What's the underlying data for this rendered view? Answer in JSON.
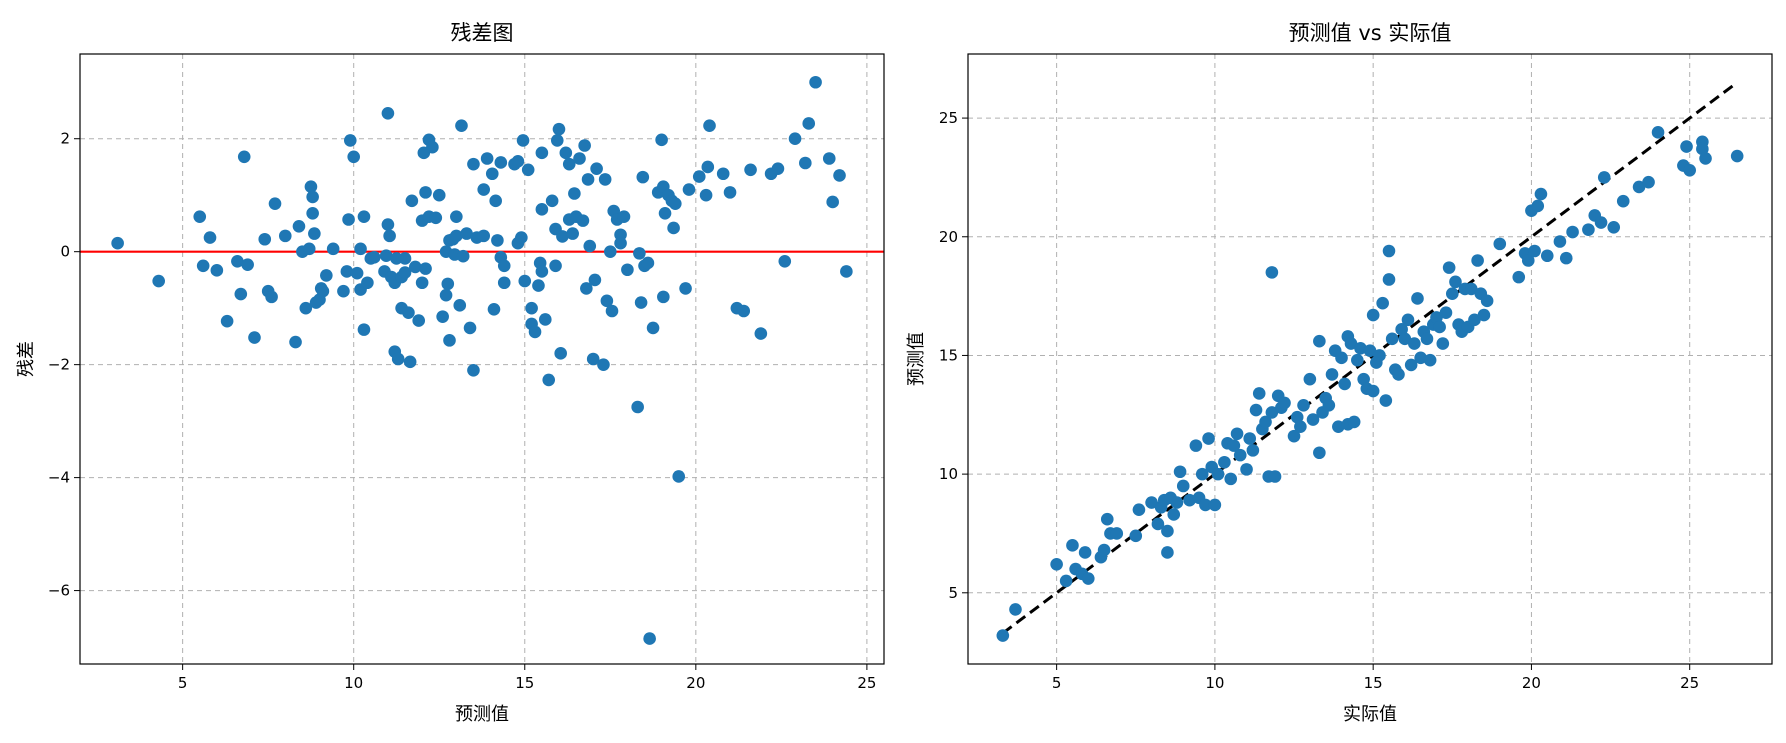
{
  "chart_data": [
    {
      "type": "scatter",
      "title": "残差图",
      "xlabel": "预测值",
      "ylabel": "残差",
      "xlim": [
        2.0,
        25.5
      ],
      "ylim": [
        -7.3,
        3.5
      ],
      "xticks": [
        5,
        10,
        15,
        20,
        25
      ],
      "yticks": [
        -6,
        -4,
        -2,
        0,
        2
      ],
      "grid": true,
      "point_color": "#1f77b4",
      "reference_line": {
        "type": "horizontal",
        "y": 0,
        "color": "#ff0000"
      },
      "points": [
        [
          3.1,
          0.15
        ],
        [
          4.3,
          -0.52
        ],
        [
          5.5,
          0.62
        ],
        [
          5.6,
          -0.25
        ],
        [
          5.8,
          0.25
        ],
        [
          6.0,
          -0.33
        ],
        [
          6.3,
          -1.23
        ],
        [
          6.6,
          -0.17
        ],
        [
          6.7,
          -0.75
        ],
        [
          6.8,
          1.68
        ],
        [
          6.9,
          -0.23
        ],
        [
          7.1,
          -1.52
        ],
        [
          7.4,
          0.22
        ],
        [
          7.5,
          -0.7
        ],
        [
          7.6,
          -0.8
        ],
        [
          7.7,
          0.85
        ],
        [
          8.0,
          0.28
        ],
        [
          8.3,
          -1.6
        ],
        [
          8.4,
          0.45
        ],
        [
          8.5,
          0.0
        ],
        [
          8.6,
          -1.0
        ],
        [
          8.7,
          0.05
        ],
        [
          8.75,
          1.15
        ],
        [
          8.8,
          0.97
        ],
        [
          8.8,
          0.68
        ],
        [
          8.85,
          0.32
        ],
        [
          8.9,
          -0.9
        ],
        [
          9.0,
          -0.85
        ],
        [
          9.05,
          -0.65
        ],
        [
          9.1,
          -0.7
        ],
        [
          9.2,
          -0.42
        ],
        [
          9.4,
          0.05
        ],
        [
          9.7,
          -0.7
        ],
        [
          9.8,
          -0.35
        ],
        [
          9.85,
          0.57
        ],
        [
          9.9,
          1.97
        ],
        [
          10.0,
          1.68
        ],
        [
          10.1,
          -0.38
        ],
        [
          10.2,
          0.05
        ],
        [
          10.2,
          -0.67
        ],
        [
          10.3,
          -1.38
        ],
        [
          10.3,
          0.62
        ],
        [
          10.4,
          -0.55
        ],
        [
          10.5,
          -0.12
        ],
        [
          10.6,
          -0.1
        ],
        [
          10.9,
          -0.35
        ],
        [
          10.95,
          -0.07
        ],
        [
          11.0,
          2.45
        ],
        [
          11.0,
          0.48
        ],
        [
          11.05,
          0.28
        ],
        [
          11.1,
          -0.45
        ],
        [
          11.2,
          -0.55
        ],
        [
          11.2,
          -1.77
        ],
        [
          11.25,
          -0.12
        ],
        [
          11.3,
          -1.9
        ],
        [
          11.4,
          -1.0
        ],
        [
          11.4,
          -0.45
        ],
        [
          11.5,
          -0.37
        ],
        [
          11.5,
          -0.12
        ],
        [
          11.6,
          -1.08
        ],
        [
          11.65,
          -1.95
        ],
        [
          11.7,
          0.9
        ],
        [
          11.8,
          -0.27
        ],
        [
          11.9,
          -1.22
        ],
        [
          12.0,
          -0.55
        ],
        [
          12.0,
          0.55
        ],
        [
          12.05,
          1.75
        ],
        [
          12.1,
          1.05
        ],
        [
          12.1,
          -0.3
        ],
        [
          12.2,
          0.62
        ],
        [
          12.2,
          1.98
        ],
        [
          12.3,
          1.85
        ],
        [
          12.4,
          0.6
        ],
        [
          12.5,
          1.0
        ],
        [
          12.6,
          -1.15
        ],
        [
          12.7,
          -0.77
        ],
        [
          12.7,
          0.0
        ],
        [
          12.75,
          -0.57
        ],
        [
          12.8,
          0.2
        ],
        [
          12.8,
          -1.57
        ],
        [
          12.9,
          0.22
        ],
        [
          12.95,
          -0.05
        ],
        [
          13.0,
          0.28
        ],
        [
          13.0,
          0.62
        ],
        [
          13.1,
          -0.95
        ],
        [
          13.15,
          2.23
        ],
        [
          13.2,
          -0.08
        ],
        [
          13.3,
          0.32
        ],
        [
          13.4,
          -1.35
        ],
        [
          13.5,
          -2.1
        ],
        [
          13.5,
          1.55
        ],
        [
          13.6,
          0.25
        ],
        [
          13.8,
          1.1
        ],
        [
          13.8,
          0.28
        ],
        [
          13.9,
          1.65
        ],
        [
          14.05,
          1.38
        ],
        [
          14.1,
          -1.02
        ],
        [
          14.15,
          0.9
        ],
        [
          14.2,
          0.2
        ],
        [
          14.3,
          -0.1
        ],
        [
          14.3,
          1.58
        ],
        [
          14.4,
          -0.25
        ],
        [
          14.4,
          -0.55
        ],
        [
          14.7,
          1.55
        ],
        [
          14.8,
          0.15
        ],
        [
          14.8,
          1.6
        ],
        [
          14.9,
          0.25
        ],
        [
          14.95,
          1.97
        ],
        [
          15.0,
          -0.52
        ],
        [
          15.1,
          1.45
        ],
        [
          15.2,
          -1.28
        ],
        [
          15.2,
          -1.0
        ],
        [
          15.3,
          -1.42
        ],
        [
          15.4,
          -0.6
        ],
        [
          15.45,
          -0.2
        ],
        [
          15.5,
          0.75
        ],
        [
          15.5,
          -0.35
        ],
        [
          15.5,
          1.75
        ],
        [
          15.6,
          -1.2
        ],
        [
          15.7,
          -2.27
        ],
        [
          15.8,
          0.9
        ],
        [
          15.9,
          -0.25
        ],
        [
          15.9,
          0.4
        ],
        [
          15.95,
          1.97
        ],
        [
          16.0,
          2.17
        ],
        [
          16.05,
          -1.8
        ],
        [
          16.1,
          0.27
        ],
        [
          16.2,
          1.75
        ],
        [
          16.3,
          0.57
        ],
        [
          16.3,
          1.55
        ],
        [
          16.4,
          0.32
        ],
        [
          16.45,
          1.03
        ],
        [
          16.5,
          0.62
        ],
        [
          16.6,
          1.65
        ],
        [
          16.7,
          0.55
        ],
        [
          16.75,
          1.88
        ],
        [
          16.8,
          -0.65
        ],
        [
          16.85,
          1.28
        ],
        [
          16.9,
          0.1
        ],
        [
          17.0,
          -1.9
        ],
        [
          17.05,
          -0.5
        ],
        [
          17.1,
          1.47
        ],
        [
          17.3,
          -2.0
        ],
        [
          17.35,
          1.28
        ],
        [
          17.4,
          -0.87
        ],
        [
          17.5,
          0.0
        ],
        [
          17.55,
          -1.05
        ],
        [
          17.6,
          0.72
        ],
        [
          17.7,
          0.57
        ],
        [
          17.8,
          0.3
        ],
        [
          17.8,
          0.15
        ],
        [
          17.9,
          0.62
        ],
        [
          18.0,
          -0.32
        ],
        [
          18.3,
          -2.75
        ],
        [
          18.35,
          -0.03
        ],
        [
          18.4,
          -0.9
        ],
        [
          18.45,
          1.32
        ],
        [
          18.5,
          -0.25
        ],
        [
          18.6,
          -0.2
        ],
        [
          18.65,
          -6.85
        ],
        [
          18.75,
          -1.35
        ],
        [
          18.9,
          1.05
        ],
        [
          19.0,
          1.98
        ],
        [
          19.05,
          -0.8
        ],
        [
          19.05,
          1.15
        ],
        [
          19.1,
          0.68
        ],
        [
          19.2,
          1.0
        ],
        [
          19.3,
          0.9
        ],
        [
          19.35,
          0.42
        ],
        [
          19.4,
          0.85
        ],
        [
          19.5,
          -3.98
        ],
        [
          19.7,
          -0.65
        ],
        [
          19.8,
          1.1
        ],
        [
          20.1,
          1.33
        ],
        [
          20.3,
          1.0
        ],
        [
          20.35,
          1.5
        ],
        [
          20.4,
          2.23
        ],
        [
          20.8,
          1.38
        ],
        [
          21.0,
          1.05
        ],
        [
          21.2,
          -1.0
        ],
        [
          21.4,
          -1.05
        ],
        [
          21.6,
          1.45
        ],
        [
          21.9,
          -1.45
        ],
        [
          22.2,
          1.38
        ],
        [
          22.4,
          1.47
        ],
        [
          22.6,
          -0.17
        ],
        [
          22.9,
          2.0
        ],
        [
          23.2,
          1.57
        ],
        [
          23.3,
          2.27
        ],
        [
          23.5,
          3.0
        ],
        [
          23.9,
          1.65
        ],
        [
          24.0,
          0.88
        ],
        [
          24.2,
          1.35
        ],
        [
          24.4,
          -0.35
        ]
      ]
    },
    {
      "type": "scatter",
      "title": "预测值 vs 实际值",
      "xlabel": "实际值",
      "ylabel": "预测值",
      "xlim": [
        2.2,
        27.6
      ],
      "ylim": [
        2.0,
        27.7
      ],
      "xticks": [
        5,
        10,
        15,
        20,
        25
      ],
      "yticks": [
        5,
        10,
        15,
        20,
        25
      ],
      "grid": true,
      "point_color": "#1f77b4",
      "reference_line": {
        "type": "diagonal",
        "from": [
          3.3,
          3.3
        ],
        "to": [
          26.5,
          26.5
        ],
        "color": "#000000",
        "style": "dashed"
      },
      "points": [
        [
          3.3,
          3.2
        ],
        [
          3.7,
          4.3
        ],
        [
          5.0,
          6.2
        ],
        [
          5.3,
          5.5
        ],
        [
          5.5,
          7.0
        ],
        [
          5.6,
          6.0
        ],
        [
          5.8,
          5.8
        ],
        [
          5.9,
          6.7
        ],
        [
          6.0,
          5.6
        ],
        [
          6.4,
          6.5
        ],
        [
          6.5,
          6.8
        ],
        [
          6.6,
          8.1
        ],
        [
          6.7,
          7.5
        ],
        [
          6.9,
          7.5
        ],
        [
          7.5,
          7.4
        ],
        [
          7.6,
          8.5
        ],
        [
          8.0,
          8.8
        ],
        [
          8.2,
          7.9
        ],
        [
          8.3,
          8.6
        ],
        [
          8.4,
          8.9
        ],
        [
          8.5,
          6.7
        ],
        [
          8.5,
          7.6
        ],
        [
          8.6,
          9.0
        ],
        [
          8.7,
          8.3
        ],
        [
          8.8,
          8.8
        ],
        [
          8.9,
          10.1
        ],
        [
          9.0,
          9.5
        ],
        [
          9.2,
          8.9
        ],
        [
          9.4,
          11.2
        ],
        [
          9.5,
          9.0
        ],
        [
          9.6,
          10.0
        ],
        [
          9.7,
          8.7
        ],
        [
          9.8,
          11.5
        ],
        [
          9.9,
          10.3
        ],
        [
          10.0,
          8.7
        ],
        [
          10.1,
          10.0
        ],
        [
          10.3,
          10.5
        ],
        [
          10.4,
          11.3
        ],
        [
          10.5,
          9.8
        ],
        [
          10.6,
          11.2
        ],
        [
          10.7,
          11.7
        ],
        [
          10.8,
          10.8
        ],
        [
          11.0,
          10.2
        ],
        [
          11.1,
          11.5
        ],
        [
          11.2,
          11.0
        ],
        [
          11.3,
          12.7
        ],
        [
          11.4,
          13.4
        ],
        [
          11.5,
          11.9
        ],
        [
          11.6,
          12.2
        ],
        [
          11.7,
          9.9
        ],
        [
          11.8,
          18.5
        ],
        [
          11.8,
          12.6
        ],
        [
          11.9,
          9.9
        ],
        [
          12.0,
          13.3
        ],
        [
          12.1,
          12.8
        ],
        [
          12.2,
          13.0
        ],
        [
          12.5,
          11.6
        ],
        [
          12.6,
          12.4
        ],
        [
          12.7,
          12.0
        ],
        [
          12.8,
          12.9
        ],
        [
          13.0,
          14.0
        ],
        [
          13.1,
          12.3
        ],
        [
          13.3,
          15.6
        ],
        [
          13.3,
          10.9
        ],
        [
          13.4,
          12.6
        ],
        [
          13.5,
          13.2
        ],
        [
          13.6,
          12.9
        ],
        [
          13.7,
          14.2
        ],
        [
          13.8,
          15.2
        ],
        [
          13.9,
          12.0
        ],
        [
          14.0,
          14.9
        ],
        [
          14.1,
          13.8
        ],
        [
          14.2,
          15.8
        ],
        [
          14.2,
          12.1
        ],
        [
          14.3,
          15.5
        ],
        [
          14.4,
          12.2
        ],
        [
          14.5,
          14.8
        ],
        [
          14.6,
          15.3
        ],
        [
          14.7,
          14.0
        ],
        [
          14.8,
          13.6
        ],
        [
          14.9,
          15.2
        ],
        [
          15.0,
          16.7
        ],
        [
          15.0,
          13.5
        ],
        [
          15.1,
          14.7
        ],
        [
          15.2,
          15.0
        ],
        [
          15.3,
          17.2
        ],
        [
          15.4,
          13.1
        ],
        [
          15.5,
          19.4
        ],
        [
          15.5,
          18.2
        ],
        [
          15.6,
          15.7
        ],
        [
          15.7,
          14.4
        ],
        [
          15.8,
          14.2
        ],
        [
          15.9,
          16.1
        ],
        [
          16.0,
          15.7
        ],
        [
          16.1,
          16.5
        ],
        [
          16.2,
          14.6
        ],
        [
          16.3,
          15.5
        ],
        [
          16.4,
          17.4
        ],
        [
          16.5,
          14.9
        ],
        [
          16.6,
          16.0
        ],
        [
          16.7,
          15.7
        ],
        [
          16.8,
          14.8
        ],
        [
          16.9,
          16.3
        ],
        [
          17.0,
          16.6
        ],
        [
          17.1,
          16.2
        ],
        [
          17.2,
          15.5
        ],
        [
          17.3,
          16.8
        ],
        [
          17.4,
          18.7
        ],
        [
          17.5,
          17.6
        ],
        [
          17.6,
          18.1
        ],
        [
          17.7,
          16.3
        ],
        [
          17.8,
          16.0
        ],
        [
          17.9,
          17.8
        ],
        [
          18.0,
          16.2
        ],
        [
          18.1,
          17.8
        ],
        [
          18.2,
          16.5
        ],
        [
          18.3,
          19.0
        ],
        [
          18.4,
          17.6
        ],
        [
          18.5,
          16.7
        ],
        [
          18.6,
          17.3
        ],
        [
          19.0,
          19.7
        ],
        [
          19.6,
          18.3
        ],
        [
          19.8,
          19.3
        ],
        [
          19.9,
          19.0
        ],
        [
          20.0,
          21.1
        ],
        [
          20.1,
          19.4
        ],
        [
          20.2,
          21.3
        ],
        [
          20.3,
          21.8
        ],
        [
          20.5,
          19.2
        ],
        [
          20.9,
          19.8
        ],
        [
          21.1,
          19.1
        ],
        [
          21.3,
          20.2
        ],
        [
          21.8,
          20.3
        ],
        [
          22.0,
          20.9
        ],
        [
          22.2,
          20.6
        ],
        [
          22.3,
          22.5
        ],
        [
          22.6,
          20.4
        ],
        [
          22.9,
          21.5
        ],
        [
          23.4,
          22.1
        ],
        [
          23.7,
          22.3
        ],
        [
          24.0,
          24.4
        ],
        [
          24.8,
          23.0
        ],
        [
          24.9,
          23.8
        ],
        [
          25.0,
          22.8
        ],
        [
          25.4,
          24.0
        ],
        [
          25.4,
          23.7
        ],
        [
          25.5,
          23.3
        ],
        [
          26.5,
          23.4
        ]
      ]
    }
  ]
}
